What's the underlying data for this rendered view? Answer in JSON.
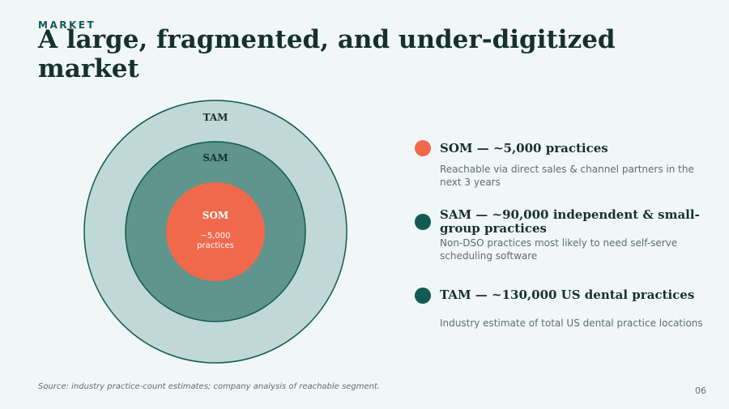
{
  "header": {
    "eyebrow": "MARKET",
    "title": "A large, fragmented, and under-digitized market"
  },
  "diagram": {
    "tam_label": "TAM",
    "sam_label": "SAM",
    "som_label": "SOM",
    "som_value_line1": "~5,000",
    "som_value_line2": "practices"
  },
  "colors": {
    "tam_fill": "#c1d8d8",
    "sam_fill": "#5f958c",
    "som_fill": "#f0694c",
    "ring_stroke": "#0f5a52",
    "dark_teal": "#135a55",
    "text_dark": "#16302e"
  },
  "legend": [
    {
      "key": "som",
      "heading": "SOM  —  ~5,000 practices",
      "description": "Reachable via direct sales & channel partners in the next 3 years"
    },
    {
      "key": "sam",
      "heading": "SAM  —  ~90,000 independent & small-group practices",
      "description": "Non-DSO practices most likely to need self-serve scheduling software"
    },
    {
      "key": "tam",
      "heading": "TAM  —  ~130,000 US dental practices",
      "description": "Industry estimate of total US dental practice locations"
    }
  ],
  "footer": {
    "source": "Source: industry practice-count estimates; company analysis of reachable segment.",
    "page_number": "06"
  }
}
